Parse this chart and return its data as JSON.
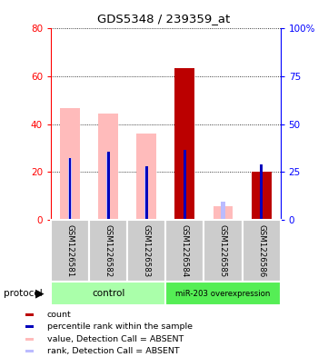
{
  "title": "GDS5348 / 239359_at",
  "samples": [
    "GSM1226581",
    "GSM1226582",
    "GSM1226583",
    "GSM1226584",
    "GSM1226585",
    "GSM1226586"
  ],
  "value_absent": [
    46.5,
    44.5,
    36.0,
    0,
    5.5,
    0
  ],
  "rank_absent_pct": [
    32.0,
    35.0,
    27.5,
    0,
    9.5,
    0
  ],
  "count": [
    0,
    0,
    0,
    63.5,
    0,
    20.0
  ],
  "percentile_rank_pct": [
    32.0,
    35.5,
    28.0,
    36.5,
    0,
    29.0
  ],
  "left_ylim": [
    0,
    80
  ],
  "right_ylim": [
    0,
    100
  ],
  "left_yticks": [
    0,
    20,
    40,
    60,
    80
  ],
  "right_yticks": [
    0,
    25,
    50,
    75,
    100
  ],
  "right_yticklabels": [
    "0",
    "25",
    "50",
    "75",
    "100%"
  ],
  "color_count": "#bb0000",
  "color_percentile": "#0000bb",
  "color_value_absent": "#ffbbbb",
  "color_rank_absent": "#bbbbff",
  "color_sample_bg": "#cccccc",
  "color_control_bg": "#aaffaa",
  "color_overexp_bg": "#55ee55",
  "legend_items": [
    {
      "color": "#bb0000",
      "label": "count"
    },
    {
      "color": "#0000bb",
      "label": "percentile rank within the sample"
    },
    {
      "color": "#ffbbbb",
      "label": "value, Detection Call = ABSENT"
    },
    {
      "color": "#bbbbff",
      "label": "rank, Detection Call = ABSENT"
    }
  ]
}
